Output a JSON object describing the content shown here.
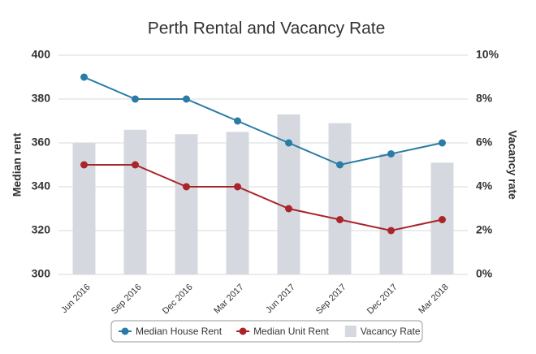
{
  "chart_data": {
    "type": "bar-line",
    "title": "Perth Rental and Vacancy Rate",
    "ylabel": "Median rent",
    "y2label": "Vacancy rate",
    "categories": [
      "Jun 2016",
      "Sep 2016",
      "Dec 2016",
      "Mar 2017",
      "Jun 2017",
      "Sep 2017",
      "Dec 2017",
      "Mar 2018"
    ],
    "ylim": [
      300,
      400
    ],
    "yticks": [
      300,
      320,
      340,
      360,
      380,
      400
    ],
    "y2lim": [
      0,
      10
    ],
    "y2ticks": [
      {
        "value": 0,
        "label": "0%"
      },
      {
        "value": 2,
        "label": "2%"
      },
      {
        "value": 4,
        "label": "4%"
      },
      {
        "value": 6,
        "label": "6%"
      },
      {
        "value": 8,
        "label": "8%"
      },
      {
        "value": 10,
        "label": "10%"
      }
    ],
    "grid": true,
    "series": [
      {
        "name": "Median House Rent",
        "type": "line",
        "color": "#2a7ca5",
        "values": [
          390,
          380,
          380,
          370,
          360,
          350,
          355,
          360
        ]
      },
      {
        "name": "Median Unit Rent",
        "type": "line",
        "color": "#a8252a",
        "values": [
          350,
          350,
          340,
          340,
          330,
          325,
          320,
          325
        ]
      },
      {
        "name": "Vacancy Rate",
        "type": "bar",
        "axis": "y2",
        "color": "#d5d9df",
        "values": [
          6.0,
          6.6,
          6.4,
          6.5,
          7.3,
          6.9,
          5.5,
          5.1
        ]
      }
    ]
  }
}
